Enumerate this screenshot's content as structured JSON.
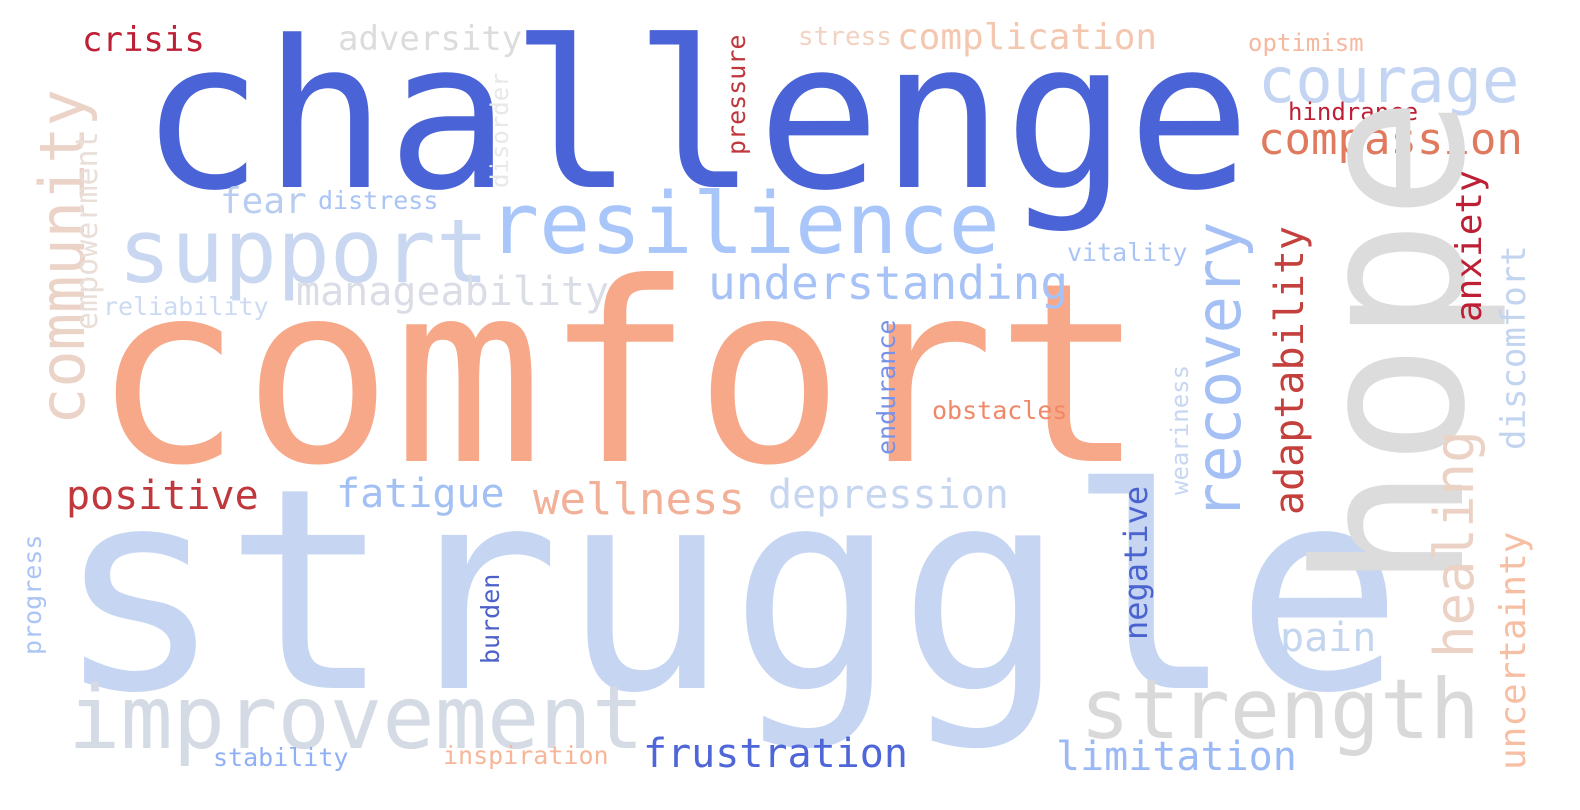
{
  "words": [
    {
      "text": "struggle",
      "color": "#c5d5f2"
    },
    {
      "text": "comfort",
      "color": "#f6a889"
    },
    {
      "text": "challenge",
      "color": "#4a63d6"
    },
    {
      "text": "hope",
      "color": "#dcdcdc"
    },
    {
      "text": "resilience",
      "color": "#a9c6fa"
    },
    {
      "text": "support",
      "color": "#c9d8f0"
    },
    {
      "text": "improvement",
      "color": "#d5dbe5"
    },
    {
      "text": "strength",
      "color": "#d9d9d9"
    },
    {
      "text": "community",
      "color": "#ebd3c8"
    },
    {
      "text": "recovery",
      "color": "#a5c0f5"
    },
    {
      "text": "courage",
      "color": "#c3d5f2"
    },
    {
      "text": "compassion",
      "color": "#e07a5f"
    },
    {
      "text": "understanding",
      "color": "#a6c2f7"
    },
    {
      "text": "adaptability",
      "color": "#c4403d"
    },
    {
      "text": "healing",
      "color": "#ecd2c4"
    },
    {
      "text": "manageability",
      "color": "#dadde6"
    },
    {
      "text": "wellness",
      "color": "#f2b098"
    },
    {
      "text": "depression",
      "color": "#c7d6f0"
    },
    {
      "text": "frustration",
      "color": "#4f66d8"
    },
    {
      "text": "positive",
      "color": "#c0373c"
    },
    {
      "text": "fatigue",
      "color": "#a3c0f5"
    },
    {
      "text": "anxiety",
      "color": "#bd1f35"
    },
    {
      "text": "discomfort",
      "color": "#c2d4f0"
    },
    {
      "text": "uncertainty",
      "color": "#f6bfa4"
    },
    {
      "text": "limitation",
      "color": "#9bb9f5"
    },
    {
      "text": "negative",
      "color": "#4b63cf"
    },
    {
      "text": "pain",
      "color": "#c4d5f0"
    },
    {
      "text": "adversity",
      "color": "#dcdcdc"
    },
    {
      "text": "complication",
      "color": "#f4c7b0"
    },
    {
      "text": "crisis",
      "color": "#bd1f35"
    },
    {
      "text": "empowerment",
      "color": "#e9ded8"
    },
    {
      "text": "disorder",
      "color": "#e8e8e8"
    },
    {
      "text": "pressure",
      "color": "#c0373c"
    },
    {
      "text": "stress",
      "color": "#f2d2c2"
    },
    {
      "text": "optimism",
      "color": "#f4b9a0"
    },
    {
      "text": "hindrance",
      "color": "#bd1f35"
    },
    {
      "text": "fear",
      "color": "#b8cdf0"
    },
    {
      "text": "distress",
      "color": "#a9c4f5"
    },
    {
      "text": "vitality",
      "color": "#a9c4f5"
    },
    {
      "text": "reliability",
      "color": "#ccdaf2"
    },
    {
      "text": "endurance",
      "color": "#7a92e6"
    },
    {
      "text": "weariness",
      "color": "#c7d6f2"
    },
    {
      "text": "obstacles",
      "color": "#f08868"
    },
    {
      "text": "burden",
      "color": "#4d62c9"
    },
    {
      "text": "progress",
      "color": "#a9c4f5"
    },
    {
      "text": "stability",
      "color": "#8fb0f5"
    },
    {
      "text": "inspiration",
      "color": "#f6b69a"
    }
  ]
}
